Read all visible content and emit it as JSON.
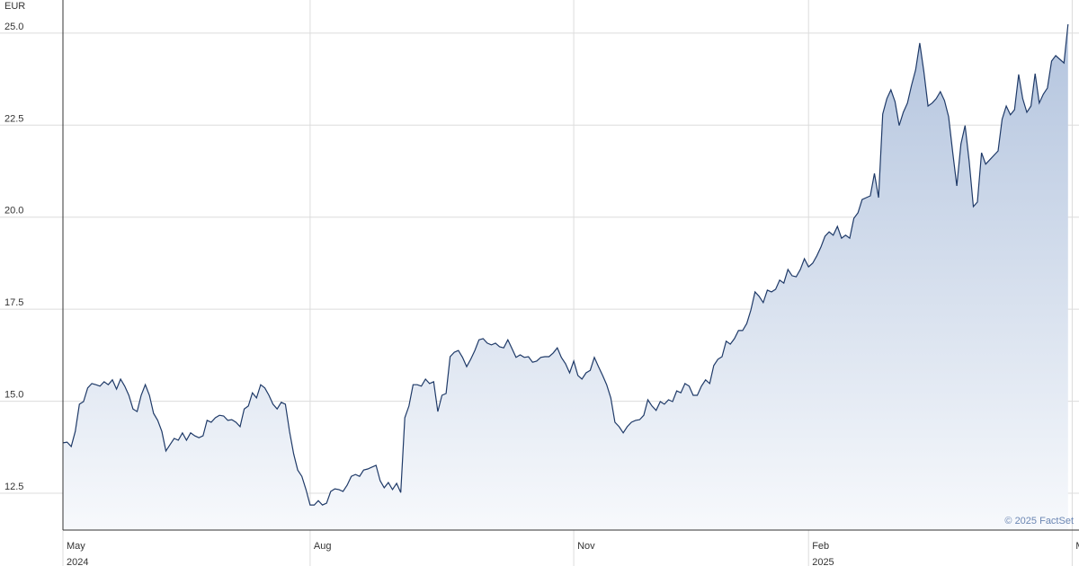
{
  "chart_data": {
    "type": "line",
    "unit": "EUR",
    "credit": "© 2025 FactSet",
    "color": "#1f3a68",
    "grid": true,
    "values": [
      13.87,
      13.89,
      13.77,
      14.18,
      14.92,
      14.99,
      15.36,
      15.48,
      15.45,
      15.41,
      15.53,
      15.45,
      15.58,
      15.33,
      15.6,
      15.41,
      15.16,
      14.79,
      14.72,
      15.16,
      15.45,
      15.16,
      14.67,
      14.48,
      14.18,
      13.65,
      13.82,
      13.99,
      13.94,
      14.14,
      13.94,
      14.14,
      14.06,
      14.01,
      14.06,
      14.48,
      14.43,
      14.55,
      14.62,
      14.6,
      14.48,
      14.5,
      14.43,
      14.31,
      14.79,
      14.87,
      15.23,
      15.09,
      15.45,
      15.36,
      15.16,
      14.92,
      14.79,
      14.97,
      14.92,
      14.18,
      13.57,
      13.13,
      12.96,
      12.6,
      12.18,
      12.18,
      12.3,
      12.18,
      12.23,
      12.55,
      12.62,
      12.6,
      12.55,
      12.72,
      12.96,
      13.01,
      12.96,
      13.13,
      13.16,
      13.21,
      13.26,
      12.84,
      12.65,
      12.79,
      12.6,
      12.77,
      12.52,
      14.55,
      14.87,
      15.45,
      15.45,
      15.41,
      15.6,
      15.48,
      15.53,
      14.72,
      15.16,
      15.21,
      16.21,
      16.33,
      16.38,
      16.19,
      15.94,
      16.14,
      16.38,
      16.67,
      16.7,
      16.58,
      16.53,
      16.58,
      16.48,
      16.45,
      16.67,
      16.43,
      16.19,
      16.26,
      16.19,
      16.21,
      16.06,
      16.09,
      16.19,
      16.21,
      16.21,
      16.31,
      16.45,
      16.19,
      16.02,
      15.77,
      16.09,
      15.7,
      15.6,
      15.77,
      15.84,
      16.19,
      15.94,
      15.7,
      15.45,
      15.09,
      14.43,
      14.31,
      14.14,
      14.31,
      14.43,
      14.48,
      14.5,
      14.62,
      15.04,
      14.87,
      14.75,
      14.99,
      14.92,
      15.04,
      14.99,
      15.28,
      15.23,
      15.48,
      15.41,
      15.16,
      15.16,
      15.41,
      15.58,
      15.48,
      15.97,
      16.14,
      16.21,
      16.63,
      16.55,
      16.7,
      16.92,
      16.92,
      17.11,
      17.48,
      17.97,
      17.85,
      17.68,
      18.02,
      17.97,
      18.04,
      18.29,
      18.21,
      18.58,
      18.41,
      18.38,
      18.58,
      18.87,
      18.65,
      18.75,
      18.95,
      19.19,
      19.48,
      19.6,
      19.51,
      19.75,
      19.43,
      19.51,
      19.43,
      19.97,
      20.12,
      20.48,
      20.53,
      20.58,
      21.19,
      20.53,
      22.8,
      23.22,
      23.46,
      23.14,
      22.49,
      22.85,
      23.1,
      23.58,
      24.0,
      24.73,
      23.95,
      23.02,
      23.1,
      23.22,
      23.41,
      23.17,
      22.73,
      21.75,
      20.85,
      21.99,
      22.49,
      21.51,
      20.29,
      20.41,
      21.75,
      21.44,
      21.56,
      21.68,
      21.8,
      22.66,
      23.02,
      22.78,
      22.92,
      23.88,
      23.22,
      22.85,
      23.02,
      23.9,
      23.1,
      23.34,
      23.51,
      24.24,
      24.39,
      24.29,
      24.19,
      25.24
    ],
    "xlim": [
      0,
      246
    ],
    "xticks": [
      {
        "value": 0,
        "label": "May"
      },
      {
        "value": 60,
        "label": "Aug"
      },
      {
        "value": 124,
        "label": "Nov"
      },
      {
        "value": 181,
        "label": "Feb"
      },
      {
        "value": 245,
        "label": "May"
      }
    ],
    "xtick_years": [
      {
        "value": 0,
        "label": "2024"
      },
      {
        "value": 181,
        "label": "2025"
      }
    ],
    "ylim": [
      11.5,
      25.9
    ],
    "yticks": [
      12.5,
      {
        "value": 15,
        "label": "15.0"
      },
      17.5,
      {
        "value": 20,
        "label": "20.0"
      },
      22.5,
      {
        "value": 25,
        "label": "25.0"
      }
    ]
  }
}
